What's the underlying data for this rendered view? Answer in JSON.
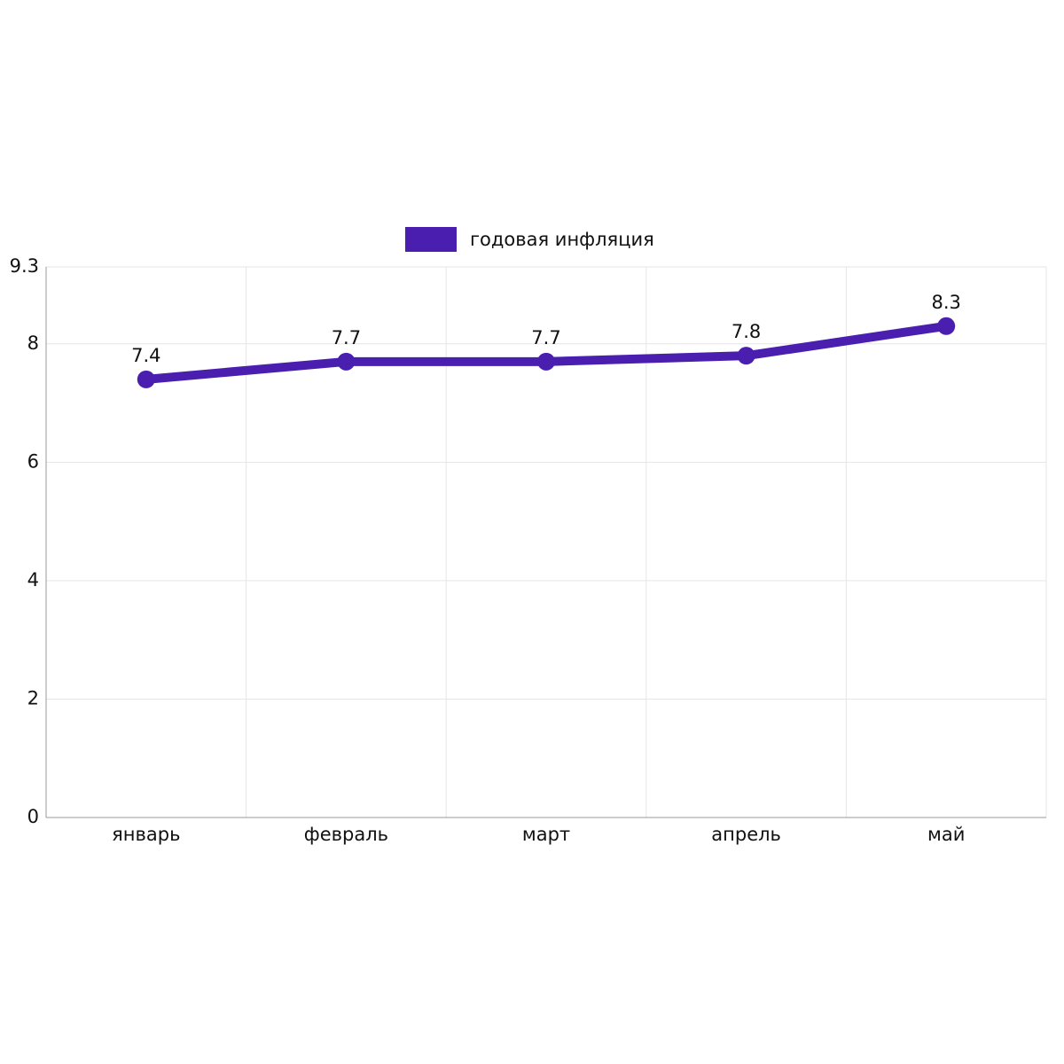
{
  "chart_data": {
    "type": "line",
    "categories": [
      "январь",
      "февраль",
      "март",
      "апрель",
      "май"
    ],
    "series": [
      {
        "name": "годовая инфляция",
        "color": "#4a1fb0",
        "values": [
          7.4,
          7.7,
          7.7,
          7.8,
          8.3
        ]
      }
    ],
    "ylim": [
      0,
      9.3
    ],
    "yticks": [
      0,
      2,
      4,
      6,
      8,
      9.3
    ],
    "grid": true,
    "legend": "top"
  }
}
